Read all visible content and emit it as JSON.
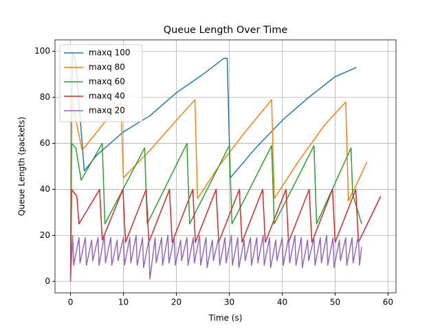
{
  "chart_data": {
    "type": "line",
    "title": "Queue Length Over Time",
    "x_label": "Time (s)",
    "y_label": "Queue Length (packets)",
    "xlim": [
      -2.93,
      61.5
    ],
    "ylim": [
      -5,
      105
    ],
    "xticks": [
      0,
      10,
      20,
      30,
      40,
      50,
      60
    ],
    "yticks": [
      0,
      20,
      40,
      60,
      80,
      100
    ],
    "grid": true,
    "legend": "upper left",
    "series": [
      {
        "name": "maxq 100",
        "color": "#1f77b4",
        "x": [
          0,
          0.3,
          1,
          2.2,
          2.6,
          5,
          10,
          15,
          20,
          25,
          29,
          29.6,
          30.2,
          35,
          40,
          45,
          50,
          54
        ],
        "values": [
          0,
          100,
          95,
          60,
          48,
          55,
          65,
          72,
          82,
          90,
          97,
          97,
          45,
          58,
          70,
          80,
          89,
          93
        ]
      },
      {
        "name": "maxq 80",
        "color": "#ff7f0e",
        "x": [
          0,
          0.2,
          1,
          2.2,
          5,
          9.5,
          10,
          15,
          20,
          23.5,
          24,
          28,
          33,
          38,
          38.5,
          43,
          48,
          52,
          52.5,
          54,
          56
        ],
        "values": [
          0,
          80,
          70,
          57,
          65,
          78,
          45,
          57,
          70,
          79,
          36,
          50,
          65,
          79,
          36,
          52,
          68,
          78,
          35,
          42,
          52
        ]
      },
      {
        "name": "maxq 60",
        "color": "#2ca02c",
        "x": [
          0,
          0.2,
          1,
          2,
          6,
          6.5,
          14,
          14.5,
          22,
          22.5,
          30,
          30.5,
          38,
          38.5,
          46,
          46.5,
          53,
          53.3,
          55
        ],
        "values": [
          0,
          60,
          58,
          44,
          60,
          25,
          58,
          25,
          60,
          25,
          59,
          25,
          59,
          25,
          59,
          25,
          58,
          38,
          25
        ]
      },
      {
        "name": "maxq 40",
        "color": "#d62728",
        "x": [
          0,
          0.2,
          1.2,
          1.6,
          5.5,
          6,
          9.9,
          10.4,
          14.3,
          14.8,
          18.7,
          19.2,
          23.1,
          23.6,
          27.5,
          28,
          31.9,
          32.4,
          36.3,
          36.8,
          40.7,
          41.2,
          45.1,
          45.6,
          49.5,
          50,
          53.9,
          54.4,
          58.6
        ],
        "values": [
          0,
          40,
          37,
          25,
          40,
          18,
          40,
          17,
          40,
          17,
          40,
          17,
          40,
          17,
          40,
          17,
          40,
          17,
          40,
          17,
          40,
          17,
          40,
          17,
          40,
          17,
          40,
          17,
          37
        ]
      },
      {
        "name": "maxq 20",
        "color": "#9467bd",
        "x": [
          0,
          0.4,
          0.6,
          1.6,
          1.8,
          2.8,
          3.0,
          4.0,
          4.2,
          5.2,
          5.4,
          6.4,
          6.6,
          7.6,
          7.8,
          8.8,
          9.0,
          10.0,
          10.2,
          11.2,
          11.4,
          12.4,
          12.6,
          13.6,
          13.8,
          14.8,
          15.0,
          16.0,
          16.2,
          17.2,
          17.4,
          18.4,
          18.6,
          19.6,
          19.8,
          20.8,
          21.0,
          22.0,
          22.2,
          23.2,
          23.4,
          24.4,
          24.6,
          25.6,
          25.8,
          26.8,
          27.0,
          28.0,
          28.2,
          29.2,
          29.4,
          30.4,
          30.6,
          31.6,
          31.8,
          32.8,
          33.0,
          34.0,
          34.2,
          35.2,
          35.4,
          36.4,
          36.6,
          37.6,
          37.8,
          38.8,
          39.0,
          40.0,
          40.2,
          41.2,
          41.4,
          42.4,
          42.6,
          43.6,
          43.8,
          44.8,
          45.0,
          46.0,
          46.2,
          47.2,
          47.4,
          48.4,
          48.6,
          49.6,
          49.8,
          50.8,
          51.0,
          52.0,
          52.2,
          53.2,
          53.4,
          54.4,
          54.6,
          55
        ],
        "values": [
          0,
          20,
          7,
          19,
          8,
          19,
          7,
          18,
          9,
          19,
          7,
          20,
          8,
          19,
          7,
          18,
          9,
          19,
          7,
          19,
          8,
          20,
          7,
          19,
          6,
          18,
          1,
          19,
          8,
          19,
          7,
          20,
          8,
          19,
          7,
          18,
          9,
          19,
          7,
          19,
          8,
          20,
          7,
          19,
          6,
          18,
          9,
          19,
          7,
          19,
          8,
          20,
          7,
          19,
          6,
          18,
          9,
          19,
          7,
          19,
          8,
          20,
          7,
          19,
          6,
          18,
          9,
          19,
          7,
          19,
          8,
          20,
          7,
          19,
          6,
          18,
          9,
          19,
          7,
          19,
          8,
          20,
          7,
          19,
          6,
          18,
          9,
          19,
          7,
          19,
          8,
          20,
          7,
          15
        ]
      }
    ]
  }
}
